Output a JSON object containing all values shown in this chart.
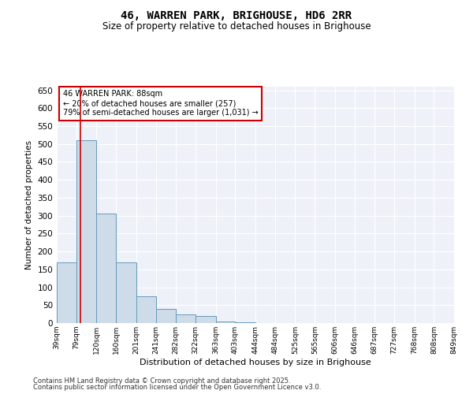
{
  "title": "46, WARREN PARK, BRIGHOUSE, HD6 2RR",
  "subtitle": "Size of property relative to detached houses in Brighouse",
  "xlabel": "Distribution of detached houses by size in Brighouse",
  "ylabel": "Number of detached properties",
  "bar_edges": [
    39,
    79,
    120,
    160,
    201,
    241,
    282,
    322,
    363,
    403,
    444,
    484,
    525,
    565,
    606,
    646,
    687,
    727,
    768,
    808,
    849
  ],
  "bar_values": [
    170,
    510,
    305,
    170,
    75,
    40,
    25,
    20,
    5,
    2,
    0,
    0,
    0,
    0,
    0,
    0,
    0,
    0,
    0,
    0
  ],
  "bar_color": "#cddce8",
  "bar_edge_color": "#6699bb",
  "property_size": 88,
  "red_line_color": "#cc0000",
  "annotation_text": "46 WARREN PARK: 88sqm\n← 20% of detached houses are smaller (257)\n79% of semi-detached houses are larger (1,031) →",
  "annotation_box_color": "#cc0000",
  "ylim": [
    0,
    660
  ],
  "yticks": [
    0,
    50,
    100,
    150,
    200,
    250,
    300,
    350,
    400,
    450,
    500,
    550,
    600,
    650
  ],
  "background_color": "#eef2f8",
  "footer_line1": "Contains HM Land Registry data © Crown copyright and database right 2025.",
  "footer_line2": "Contains public sector information licensed under the Open Government Licence v3.0.",
  "tick_labels": [
    "39sqm",
    "79sqm",
    "120sqm",
    "160sqm",
    "201sqm",
    "241sqm",
    "282sqm",
    "322sqm",
    "363sqm",
    "403sqm",
    "444sqm",
    "484sqm",
    "525sqm",
    "565sqm",
    "606sqm",
    "646sqm",
    "687sqm",
    "727sqm",
    "768sqm",
    "808sqm",
    "849sqm"
  ],
  "title_fontsize": 10,
  "subtitle_fontsize": 8.5,
  "ylabel_fontsize": 7.5,
  "xlabel_fontsize": 8,
  "ytick_fontsize": 7.5,
  "xtick_fontsize": 6.5,
  "annotation_fontsize": 7,
  "footer_fontsize": 6
}
